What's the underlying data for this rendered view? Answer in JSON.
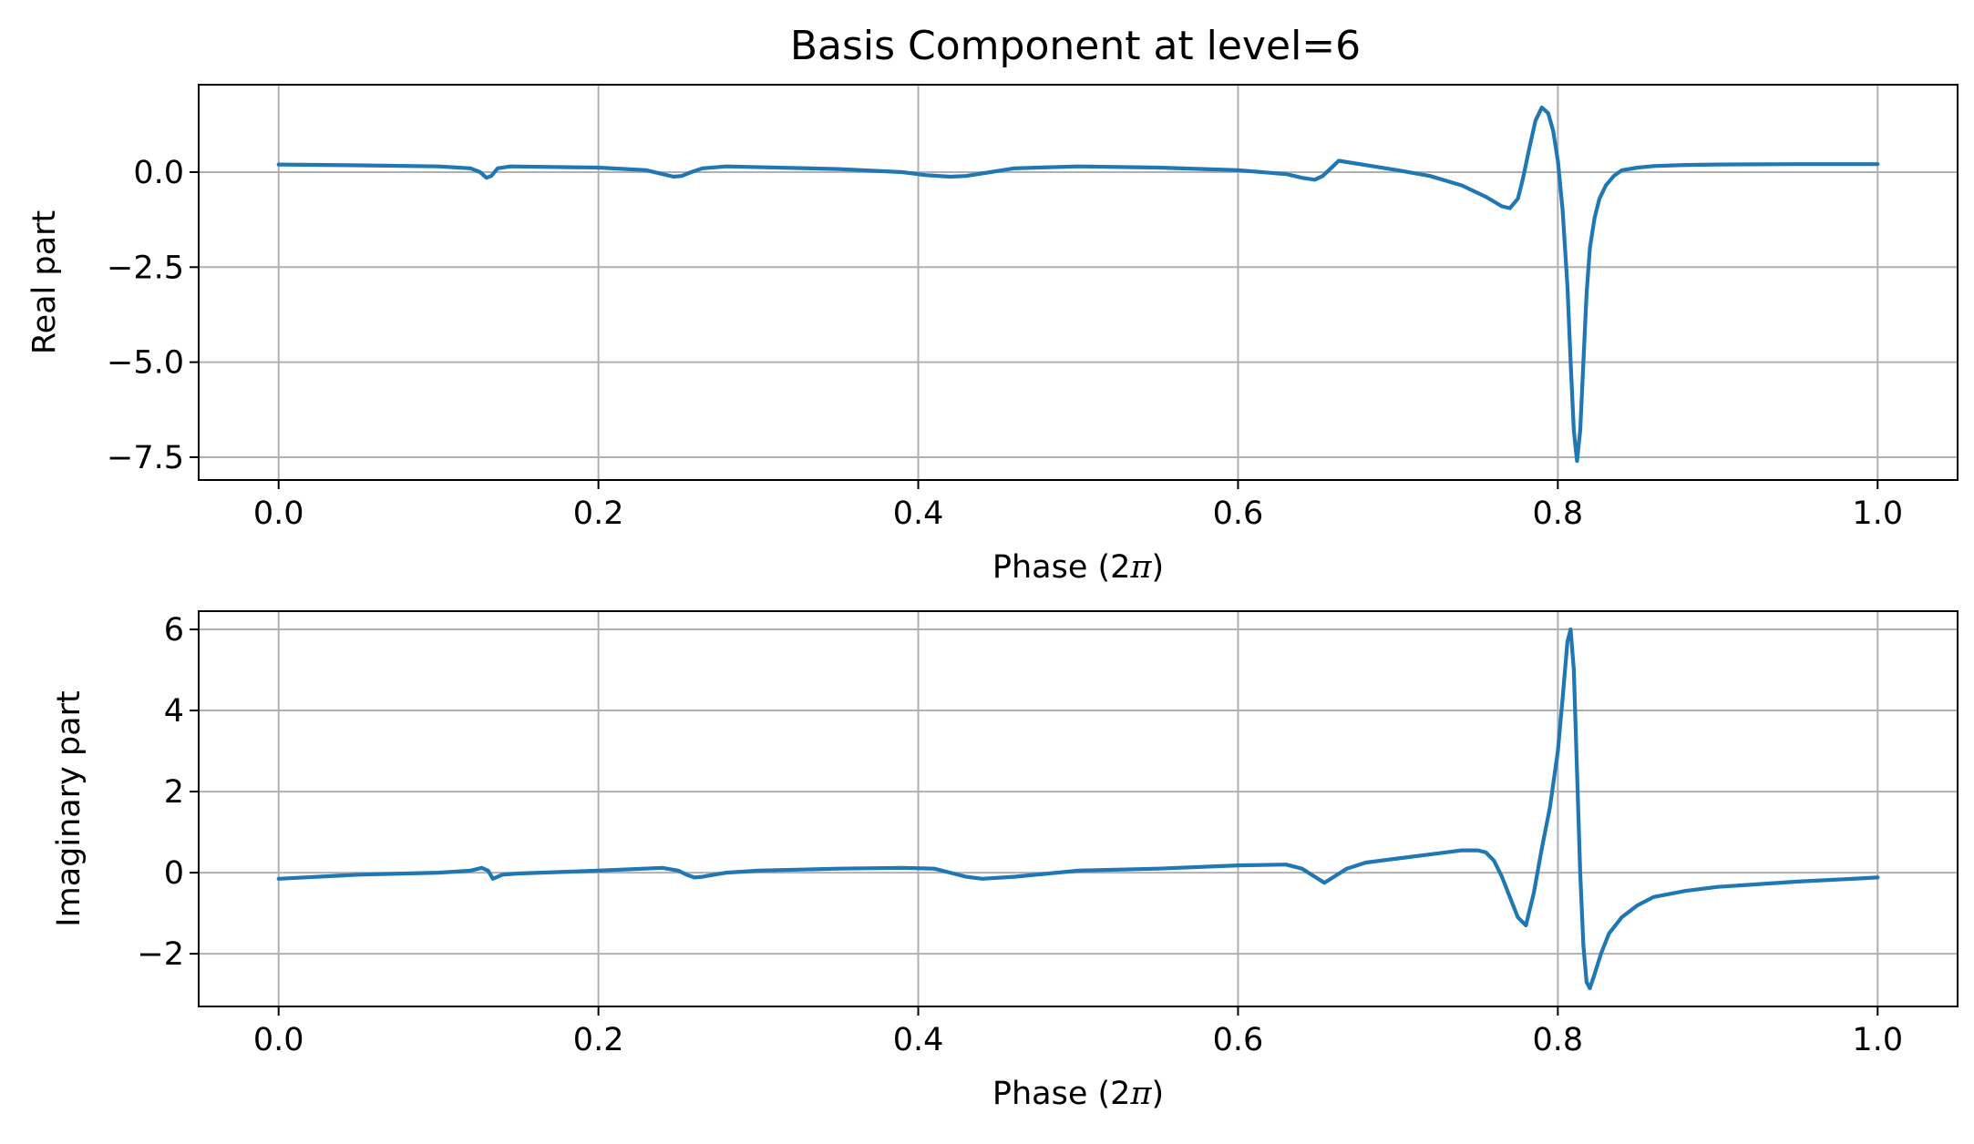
{
  "figure": {
    "title": "Basis Component at level=6"
  },
  "chart_data": [
    {
      "type": "line",
      "xlabel_prefix": "Phase (2",
      "xlabel_symbol": "π",
      "xlabel_suffix": ")",
      "ylabel": "Real part",
      "xlim": [
        -0.05,
        1.05
      ],
      "ylim": [
        -8.1,
        2.3
      ],
      "xticks": [
        0.0,
        0.2,
        0.4,
        0.6,
        0.8,
        1.0
      ],
      "xtick_labels": [
        "0.0",
        "0.2",
        "0.4",
        "0.6",
        "0.8",
        "1.0"
      ],
      "yticks": [
        0.0,
        -2.5,
        -5.0,
        -7.5
      ],
      "ytick_labels": [
        "0.0",
        "−2.5",
        "−5.0",
        "−7.5"
      ],
      "grid": true,
      "color": "#1f77b4",
      "series": [
        {
          "x": [
            0.0,
            0.05,
            0.1,
            0.12,
            0.126,
            0.13,
            0.133,
            0.137,
            0.145,
            0.2,
            0.23,
            0.24,
            0.247,
            0.252,
            0.258,
            0.265,
            0.28,
            0.35,
            0.39,
            0.405,
            0.42,
            0.43,
            0.445,
            0.46,
            0.5,
            0.55,
            0.6,
            0.63,
            0.64,
            0.648,
            0.653,
            0.658,
            0.663,
            0.67,
            0.685,
            0.7,
            0.72,
            0.74,
            0.755,
            0.765,
            0.77,
            0.775,
            0.778,
            0.782,
            0.786,
            0.79,
            0.794,
            0.797,
            0.8,
            0.803,
            0.806,
            0.808,
            0.81,
            0.812,
            0.814,
            0.816,
            0.818,
            0.82,
            0.823,
            0.826,
            0.83,
            0.835,
            0.84,
            0.85,
            0.86,
            0.88,
            0.9,
            0.95,
            1.0
          ],
          "y": [
            0.2,
            0.18,
            0.15,
            0.1,
            0.0,
            -0.15,
            -0.1,
            0.1,
            0.15,
            0.12,
            0.05,
            -0.05,
            -0.12,
            -0.1,
            0.0,
            0.1,
            0.15,
            0.08,
            0.0,
            -0.08,
            -0.12,
            -0.1,
            0.0,
            0.1,
            0.15,
            0.12,
            0.05,
            -0.05,
            -0.15,
            -0.2,
            -0.1,
            0.1,
            0.3,
            0.25,
            0.15,
            0.05,
            -0.1,
            -0.35,
            -0.65,
            -0.9,
            -0.95,
            -0.7,
            -0.2,
            0.6,
            1.35,
            1.7,
            1.55,
            1.1,
            0.3,
            -1.0,
            -3.0,
            -5.0,
            -6.8,
            -7.6,
            -6.8,
            -5.0,
            -3.2,
            -2.0,
            -1.2,
            -0.7,
            -0.35,
            -0.1,
            0.05,
            0.12,
            0.16,
            0.19,
            0.2,
            0.21,
            0.21
          ]
        }
      ]
    },
    {
      "type": "line",
      "xlabel_prefix": "Phase (2",
      "xlabel_symbol": "π",
      "xlabel_suffix": ")",
      "ylabel": "Imaginary part",
      "xlim": [
        -0.05,
        1.05
      ],
      "ylim": [
        -3.3,
        6.45
      ],
      "xticks": [
        0.0,
        0.2,
        0.4,
        0.6,
        0.8,
        1.0
      ],
      "xtick_labels": [
        "0.0",
        "0.2",
        "0.4",
        "0.6",
        "0.8",
        "1.0"
      ],
      "yticks": [
        6,
        4,
        2,
        0,
        -2
      ],
      "ytick_labels": [
        "6",
        "4",
        "2",
        "0",
        "−2"
      ],
      "grid": true,
      "color": "#1f77b4",
      "series": [
        {
          "x": [
            0.0,
            0.05,
            0.1,
            0.12,
            0.127,
            0.131,
            0.134,
            0.14,
            0.15,
            0.2,
            0.24,
            0.25,
            0.255,
            0.26,
            0.265,
            0.28,
            0.3,
            0.35,
            0.39,
            0.41,
            0.42,
            0.43,
            0.44,
            0.46,
            0.5,
            0.55,
            0.6,
            0.63,
            0.64,
            0.648,
            0.654,
            0.66,
            0.668,
            0.68,
            0.7,
            0.72,
            0.74,
            0.75,
            0.755,
            0.76,
            0.765,
            0.77,
            0.775,
            0.78,
            0.785,
            0.79,
            0.795,
            0.8,
            0.803,
            0.806,
            0.808,
            0.81,
            0.812,
            0.814,
            0.816,
            0.818,
            0.82,
            0.823,
            0.827,
            0.832,
            0.84,
            0.85,
            0.86,
            0.88,
            0.9,
            0.95,
            1.0
          ],
          "y": [
            -0.15,
            -0.05,
            0.0,
            0.05,
            0.12,
            0.05,
            -0.15,
            -0.05,
            -0.02,
            0.05,
            0.12,
            0.05,
            -0.05,
            -0.12,
            -0.1,
            0.0,
            0.05,
            0.1,
            0.12,
            0.1,
            0.0,
            -0.1,
            -0.15,
            -0.1,
            0.05,
            0.1,
            0.18,
            0.2,
            0.1,
            -0.1,
            -0.25,
            -0.1,
            0.1,
            0.25,
            0.35,
            0.45,
            0.55,
            0.55,
            0.5,
            0.3,
            -0.1,
            -0.6,
            -1.1,
            -1.3,
            -0.5,
            0.6,
            1.6,
            3.0,
            4.3,
            5.7,
            6.0,
            5.0,
            2.5,
            0.0,
            -1.8,
            -2.7,
            -2.85,
            -2.5,
            -2.0,
            -1.5,
            -1.1,
            -0.8,
            -0.6,
            -0.45,
            -0.35,
            -0.22,
            -0.12
          ]
        }
      ]
    }
  ]
}
